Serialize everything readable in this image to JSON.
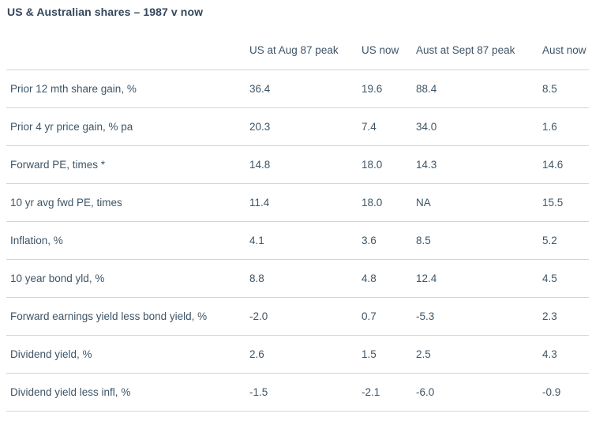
{
  "title": "US & Australian shares – 1987 v now",
  "colors": {
    "background": "#ffffff",
    "title_text": "#33475b",
    "body_text": "#3e5567",
    "divider": "#ccd6dc"
  },
  "chart_data": {
    "type": "table",
    "title": "US & Australian shares – 1987 v now",
    "columns": [
      "",
      "US at Aug 87 peak",
      "US now",
      "Aust at Sept 87 peak",
      "Aust now"
    ],
    "rows": [
      {
        "label": "Prior 12 mth share gain, %",
        "values": [
          "36.4",
          "19.6",
          "88.4",
          "8.5"
        ]
      },
      {
        "label": "Prior 4 yr price gain, % pa",
        "values": [
          "20.3",
          "7.4",
          "34.0",
          "1.6"
        ]
      },
      {
        "label": "Forward PE, times *",
        "values": [
          "14.8",
          "18.0",
          "14.3",
          "14.6"
        ]
      },
      {
        "label": "10 yr avg fwd PE, times",
        "values": [
          "11.4",
          "18.0",
          "NA",
          "15.5"
        ]
      },
      {
        "label": "Inflation, %",
        "values": [
          "4.1",
          "3.6",
          "8.5",
          "5.2"
        ]
      },
      {
        "label": "10 year bond yld, %",
        "values": [
          "8.8",
          "4.8",
          "12.4",
          "4.5"
        ]
      },
      {
        "label": "Forward earnings yield less bond yield, %",
        "values": [
          "-2.0",
          "0.7",
          "-5.3",
          "2.3"
        ]
      },
      {
        "label": "Dividend yield, %",
        "values": [
          "2.6",
          "1.5",
          "2.5",
          "4.3"
        ]
      },
      {
        "label": "Dividend yield less infl, %",
        "values": [
          "-1.5",
          "-2.1",
          "-6.0",
          "-0.9"
        ]
      }
    ]
  }
}
